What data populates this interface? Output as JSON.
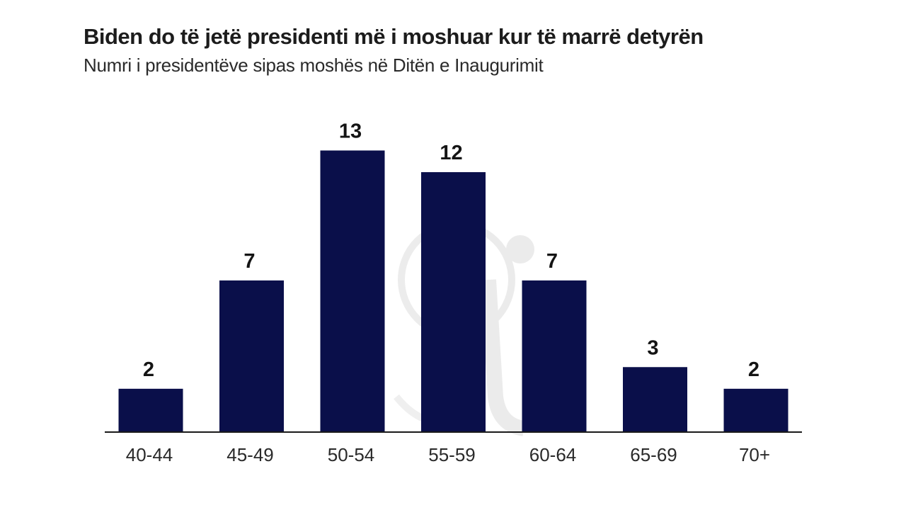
{
  "header": {
    "title": "Biden do të jetë presidenti më i moshuar kur të marrë detyrën",
    "subtitle": "Numri i presidentëve sipas moshës në Ditën e Inaugurimit"
  },
  "colors": {
    "bar": "#0a0f4a",
    "axis": "#1a1a1a",
    "watermark": "#d9d9d9"
  },
  "chart_data": {
    "type": "bar",
    "title": "Biden do të jetë presidenti më i moshuar kur të marrë detyrën",
    "subtitle": "Numri i presidentëve sipas moshës në Ditën e Inaugurimit",
    "categories": [
      "40-44",
      "45-49",
      "50-54",
      "55-59",
      "60-64",
      "65-69",
      "70+"
    ],
    "values": [
      2,
      7,
      13,
      12,
      7,
      3,
      2
    ],
    "xlabel": "",
    "ylabel": "",
    "ylim": [
      0,
      13.8
    ],
    "grid": false,
    "data_labels": true
  }
}
